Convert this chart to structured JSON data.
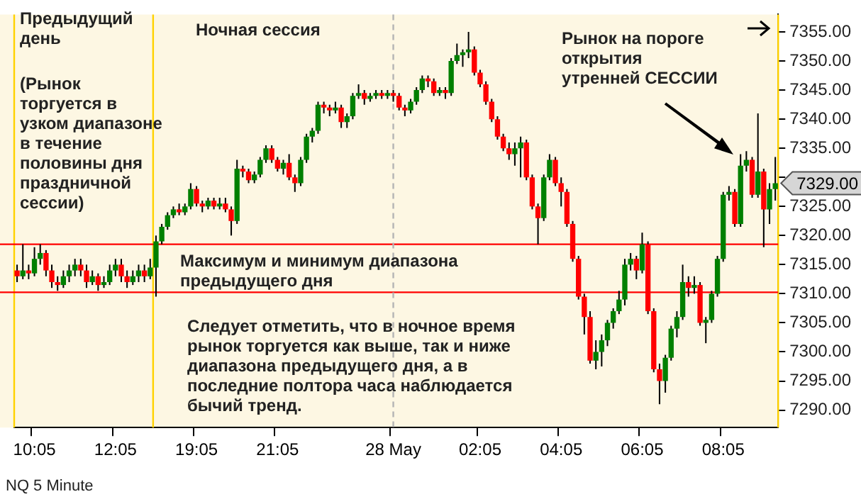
{
  "chart_data": {
    "type": "candlestick",
    "categories": [
      null,
      null,
      null,
      "10:05",
      null,
      null,
      null,
      null,
      null,
      null,
      null,
      null,
      null,
      null,
      null,
      null,
      null,
      "12:05",
      null,
      null,
      null,
      null,
      null,
      null,
      null,
      null,
      null,
      null,
      null,
      null,
      null,
      "19:05",
      null,
      null,
      null,
      null,
      null,
      null,
      null,
      null,
      null,
      null,
      null,
      null,
      null,
      "21:05",
      null,
      null,
      null,
      null,
      null,
      null,
      null,
      null,
      null,
      null,
      null,
      null,
      null,
      null,
      null,
      null,
      null,
      null,
      null,
      "28 May",
      null,
      null,
      null,
      null,
      null,
      null,
      null,
      null,
      null,
      null,
      null,
      null,
      null,
      null,
      "02:05",
      null,
      null,
      null,
      null,
      null,
      null,
      null,
      null,
      null,
      null,
      null,
      null,
      null,
      "04:05",
      null,
      null,
      null,
      null,
      null,
      null,
      null,
      null,
      null,
      null,
      null,
      null,
      null,
      "06:05",
      null,
      null,
      null,
      null,
      null,
      null,
      null,
      null,
      null,
      null,
      null,
      null,
      null,
      "08:05",
      null,
      null,
      null,
      null,
      null,
      null,
      null,
      null,
      null
    ],
    "ohlc": [
      [
        7314,
        7315,
        7312,
        7313
      ],
      [
        7313,
        7318.5,
        7312.5,
        7314
      ],
      [
        7314,
        7315,
        7312.5,
        7313.5
      ],
      [
        7313.5,
        7318,
        7313,
        7316
      ],
      [
        7316,
        7318.5,
        7315,
        7317
      ],
      [
        7317,
        7317.5,
        7313,
        7314
      ],
      [
        7314,
        7315,
        7311,
        7312
      ],
      [
        7312,
        7313,
        7310.5,
        7311.5
      ],
      [
        7311.5,
        7314,
        7311,
        7313
      ],
      [
        7313,
        7315,
        7312,
        7314
      ],
      [
        7314,
        7316,
        7313,
        7315
      ],
      [
        7315,
        7316,
        7313,
        7314
      ],
      [
        7314,
        7315,
        7311,
        7312
      ],
      [
        7312,
        7314,
        7311.5,
        7313
      ],
      [
        7313,
        7313.5,
        7310.5,
        7311.5
      ],
      [
        7311.5,
        7313,
        7311,
        7312
      ],
      [
        7312,
        7315,
        7311.5,
        7314
      ],
      [
        7314,
        7316,
        7313,
        7315
      ],
      [
        7315,
        7316,
        7312,
        7313
      ],
      [
        7313,
        7314,
        7311,
        7312
      ],
      [
        7312,
        7314,
        7311.5,
        7313
      ],
      [
        7313,
        7315,
        7312,
        7314
      ],
      [
        7314,
        7315,
        7312,
        7313
      ],
      [
        7313,
        7316,
        7312.5,
        7314.5
      ],
      [
        7314.5,
        7320,
        7309.5,
        7319
      ],
      [
        7319,
        7322,
        7318.5,
        7321.5
      ],
      [
        7321.5,
        7324,
        7321,
        7323.5
      ],
      [
        7323.5,
        7325,
        7323,
        7324.5
      ],
      [
        7324.5,
        7325.5,
        7323.5,
        7324
      ],
      [
        7324,
        7325.5,
        7323.5,
        7325
      ],
      [
        7325,
        7329,
        7324.5,
        7328
      ],
      [
        7328,
        7328.5,
        7325,
        7325.5
      ],
      [
        7325.5,
        7326,
        7324,
        7325
      ],
      [
        7325,
        7326.5,
        7324.5,
        7326
      ],
      [
        7326,
        7326.5,
        7324.5,
        7325
      ],
      [
        7325,
        7326.5,
        7324.5,
        7325.5
      ],
      [
        7325.5,
        7326.5,
        7324,
        7324.5
      ],
      [
        7324.5,
        7325,
        7320,
        7322.5
      ],
      [
        7322.5,
        7333,
        7322,
        7331.5
      ],
      [
        7331.5,
        7332,
        7330,
        7331
      ],
      [
        7331,
        7331.5,
        7329,
        7329.5
      ],
      [
        7329.5,
        7331,
        7329,
        7330.5
      ],
      [
        7330.5,
        7333.5,
        7330,
        7333
      ],
      [
        7333,
        7335.5,
        7332.5,
        7335
      ],
      [
        7335,
        7335.5,
        7332.5,
        7333
      ],
      [
        7333,
        7333.5,
        7331,
        7331.5
      ],
      [
        7331.5,
        7333,
        7330.5,
        7332.5
      ],
      [
        7332.5,
        7334,
        7329.5,
        7330
      ],
      [
        7330,
        7330.5,
        7327.5,
        7329
      ],
      [
        7329,
        7333.5,
        7328.5,
        7333
      ],
      [
        7333,
        7337.5,
        7332.5,
        7337
      ],
      [
        7337,
        7338.5,
        7336,
        7338
      ],
      [
        7338,
        7343,
        7337.5,
        7342.5
      ],
      [
        7342.5,
        7343,
        7341,
        7342
      ],
      [
        7342,
        7342.5,
        7340.5,
        7341.5
      ],
      [
        7341.5,
        7343,
        7341,
        7342
      ],
      [
        7342,
        7342.5,
        7338.5,
        7339.5
      ],
      [
        7339.5,
        7341,
        7338.5,
        7340.5
      ],
      [
        7340.5,
        7344.5,
        7340,
        7344
      ],
      [
        7344,
        7346,
        7343.5,
        7344.5
      ],
      [
        7344.5,
        7345,
        7342.5,
        7343.5
      ],
      [
        7343.5,
        7344.5,
        7343,
        7344
      ],
      [
        7344,
        7345,
        7343.5,
        7344.5
      ],
      [
        7344.5,
        7345,
        7343.5,
        7344
      ],
      [
        7344,
        7345,
        7343.5,
        7344.5
      ],
      [
        7344.5,
        7345,
        7343,
        7344
      ],
      [
        7344,
        7344.5,
        7341.5,
        7342
      ],
      [
        7342,
        7342.5,
        7340.5,
        7341.5
      ],
      [
        7341.5,
        7343.5,
        7341,
        7343
      ],
      [
        7343,
        7345.5,
        7342.5,
        7345
      ],
      [
        7345,
        7347.5,
        7344.5,
        7347
      ],
      [
        7347,
        7347.5,
        7345.5,
        7346.5
      ],
      [
        7346.5,
        7347,
        7344,
        7344.5
      ],
      [
        7344.5,
        7345.5,
        7344,
        7345
      ],
      [
        7345,
        7345.5,
        7343.5,
        7344.5
      ],
      [
        7344.5,
        7350.5,
        7344,
        7350
      ],
      [
        7350,
        7353,
        7349.5,
        7351
      ],
      [
        7351,
        7352,
        7349,
        7351.5
      ],
      [
        7351.5,
        7355,
        7350.5,
        7352
      ],
      [
        7352,
        7352.5,
        7347.5,
        7348
      ],
      [
        7348,
        7348.5,
        7345.5,
        7346
      ],
      [
        7346,
        7346.5,
        7342.5,
        7343
      ],
      [
        7343,
        7343.5,
        7339.5,
        7340
      ],
      [
        7340,
        7340.5,
        7336.5,
        7337
      ],
      [
        7337,
        7337.5,
        7334.5,
        7335
      ],
      [
        7335,
        7336,
        7333,
        7334
      ],
      [
        7334,
        7336,
        7332,
        7335
      ],
      [
        7335,
        7337,
        7330,
        7336
      ],
      [
        7336,
        7336.5,
        7329.5,
        7330
      ],
      [
        7330,
        7330.5,
        7324.5,
        7325
      ],
      [
        7325,
        7325.5,
        7318.5,
        7323
      ],
      [
        7323,
        7330.5,
        7322.5,
        7330
      ],
      [
        7330,
        7334,
        7329.5,
        7333
      ],
      [
        7333,
        7333.5,
        7328.5,
        7329
      ],
      [
        7329,
        7330,
        7325,
        7327.5
      ],
      [
        7327.5,
        7328,
        7321.5,
        7322
      ],
      [
        7322,
        7322.5,
        7315.5,
        7316
      ],
      [
        7316,
        7316.5,
        7309,
        7309.5
      ],
      [
        7309.5,
        7310,
        7303,
        7306
      ],
      [
        7306,
        7307,
        7298,
        7298.5
      ],
      [
        7298.5,
        7302,
        7297,
        7300
      ],
      [
        7300,
        7303,
        7297.5,
        7302
      ],
      [
        7302,
        7305.5,
        7301,
        7305
      ],
      [
        7305,
        7307.5,
        7304,
        7307
      ],
      [
        7307,
        7310.5,
        7306.5,
        7309
      ],
      [
        7309,
        7316,
        7308,
        7315
      ],
      [
        7315,
        7317,
        7314,
        7316
      ],
      [
        7316,
        7316.5,
        7312.5,
        7314
      ],
      [
        7314,
        7320.5,
        7313.5,
        7318.5
      ],
      [
        7318.5,
        7319,
        7306.5,
        7307
      ],
      [
        7307,
        7307.5,
        7296.5,
        7297
      ],
      [
        7297,
        7298,
        7291,
        7295
      ],
      [
        7295,
        7299.5,
        7293,
        7299
      ],
      [
        7299,
        7304.5,
        7298.5,
        7304
      ],
      [
        7304,
        7307,
        7302.5,
        7306
      ],
      [
        7306,
        7315,
        7305.5,
        7312
      ],
      [
        7312,
        7313,
        7309.5,
        7311
      ],
      [
        7311,
        7313,
        7310,
        7311.5
      ],
      [
        7311.5,
        7312,
        7304.5,
        7305
      ],
      [
        7305,
        7306,
        7301.5,
        7305.5
      ],
      [
        7305.5,
        7310.5,
        7305,
        7310
      ],
      [
        7310,
        7316.5,
        7309.5,
        7316
      ],
      [
        7316,
        7327.5,
        7315.5,
        7327
      ],
      [
        7327,
        7328.5,
        7326,
        7327.5
      ],
      [
        7327.5,
        7328,
        7321.5,
        7322
      ],
      [
        7322,
        7334,
        7321.5,
        7332
      ],
      [
        7332,
        7334.5,
        7331,
        7333
      ],
      [
        7333,
        7333.5,
        7326.5,
        7327
      ],
      [
        7327,
        7341,
        7326.5,
        7331
      ],
      [
        7331,
        7331.5,
        7318,
        7324.5
      ],
      [
        7324.5,
        7329,
        7322,
        7328
      ],
      [
        7328,
        7333.5,
        7326,
        7329
      ]
    ],
    "ylim": [
      7287,
      7358
    ],
    "yticks": [
      {
        "value": 7290,
        "label": "7290.00"
      },
      {
        "value": 7295,
        "label": "7295.00"
      },
      {
        "value": 7300,
        "label": "7300.00"
      },
      {
        "value": 7305,
        "label": "7305.00"
      },
      {
        "value": 7310,
        "label": "7310.00"
      },
      {
        "value": 7315,
        "label": "7315.00"
      },
      {
        "value": 7320,
        "label": "7320.00"
      },
      {
        "value": 7325,
        "label": "7325.00"
      },
      {
        "value": 7330,
        "label": null
      },
      {
        "value": 7335,
        "label": "7335.00"
      },
      {
        "value": 7340,
        "label": "7340.00"
      },
      {
        "value": 7345,
        "label": "7345.00"
      },
      {
        "value": 7350,
        "label": "7350.00"
      },
      {
        "value": 7355,
        "label": "7355.00"
      }
    ],
    "ref_lines": [
      {
        "axis": "y",
        "value": 7318.5,
        "color": "#ff0000",
        "line_style": "solid"
      },
      {
        "axis": "y",
        "value": 7310.25,
        "color": "#ff0000",
        "line_style": "solid"
      },
      {
        "axis": "x",
        "value": "28 May",
        "color": "#b4b4b4",
        "line_style": "dashed"
      }
    ],
    "annotations": [
      "Предыдущий день",
      "(Рынок торгуется в узком диапазоне в течение половины дня праздничной сессии)",
      "Ночная сессия",
      "Рынок на пороге открытия утренней СЕССИИ",
      "Максимум и минимум диапазона предыдущего дня",
      "Следует отметить, что в ночное время рынок торгуется как выше, так и ниже диапазона предыдущего дня, а в последние полтора часа наблюдается бычий тренд.",
      "NQ 5 Minute",
      "7329.00"
    ]
  }
}
